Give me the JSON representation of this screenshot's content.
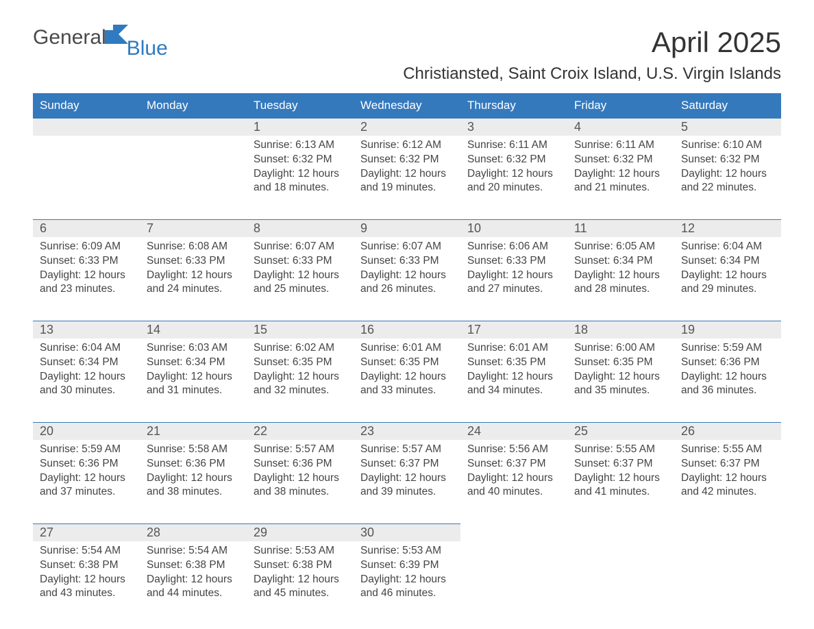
{
  "brand": {
    "word1": "General",
    "word2": "Blue"
  },
  "title": "April 2025",
  "location": "Christiansted, Saint Croix Island, U.S. Virgin Islands",
  "colors": {
    "header_bg": "#3579bd",
    "header_text": "#ffffff",
    "daynum_bg": "#ececec",
    "daynum_border": "#3579bd",
    "body_text": "#444444",
    "brand_gray": "#4a4a4a",
    "brand_blue": "#2f7ac0"
  },
  "weekdays": [
    "Sunday",
    "Monday",
    "Tuesday",
    "Wednesday",
    "Thursday",
    "Friday",
    "Saturday"
  ],
  "grid": {
    "leading_blanks": 2,
    "days": [
      {
        "n": "1",
        "sunrise": "Sunrise: 6:13 AM",
        "sunset": "Sunset: 6:32 PM",
        "dl1": "Daylight: 12 hours",
        "dl2": "and 18 minutes."
      },
      {
        "n": "2",
        "sunrise": "Sunrise: 6:12 AM",
        "sunset": "Sunset: 6:32 PM",
        "dl1": "Daylight: 12 hours",
        "dl2": "and 19 minutes."
      },
      {
        "n": "3",
        "sunrise": "Sunrise: 6:11 AM",
        "sunset": "Sunset: 6:32 PM",
        "dl1": "Daylight: 12 hours",
        "dl2": "and 20 minutes."
      },
      {
        "n": "4",
        "sunrise": "Sunrise: 6:11 AM",
        "sunset": "Sunset: 6:32 PM",
        "dl1": "Daylight: 12 hours",
        "dl2": "and 21 minutes."
      },
      {
        "n": "5",
        "sunrise": "Sunrise: 6:10 AM",
        "sunset": "Sunset: 6:32 PM",
        "dl1": "Daylight: 12 hours",
        "dl2": "and 22 minutes."
      },
      {
        "n": "6",
        "sunrise": "Sunrise: 6:09 AM",
        "sunset": "Sunset: 6:33 PM",
        "dl1": "Daylight: 12 hours",
        "dl2": "and 23 minutes."
      },
      {
        "n": "7",
        "sunrise": "Sunrise: 6:08 AM",
        "sunset": "Sunset: 6:33 PM",
        "dl1": "Daylight: 12 hours",
        "dl2": "and 24 minutes."
      },
      {
        "n": "8",
        "sunrise": "Sunrise: 6:07 AM",
        "sunset": "Sunset: 6:33 PM",
        "dl1": "Daylight: 12 hours",
        "dl2": "and 25 minutes."
      },
      {
        "n": "9",
        "sunrise": "Sunrise: 6:07 AM",
        "sunset": "Sunset: 6:33 PM",
        "dl1": "Daylight: 12 hours",
        "dl2": "and 26 minutes."
      },
      {
        "n": "10",
        "sunrise": "Sunrise: 6:06 AM",
        "sunset": "Sunset: 6:33 PM",
        "dl1": "Daylight: 12 hours",
        "dl2": "and 27 minutes."
      },
      {
        "n": "11",
        "sunrise": "Sunrise: 6:05 AM",
        "sunset": "Sunset: 6:34 PM",
        "dl1": "Daylight: 12 hours",
        "dl2": "and 28 minutes."
      },
      {
        "n": "12",
        "sunrise": "Sunrise: 6:04 AM",
        "sunset": "Sunset: 6:34 PM",
        "dl1": "Daylight: 12 hours",
        "dl2": "and 29 minutes."
      },
      {
        "n": "13",
        "sunrise": "Sunrise: 6:04 AM",
        "sunset": "Sunset: 6:34 PM",
        "dl1": "Daylight: 12 hours",
        "dl2": "and 30 minutes."
      },
      {
        "n": "14",
        "sunrise": "Sunrise: 6:03 AM",
        "sunset": "Sunset: 6:34 PM",
        "dl1": "Daylight: 12 hours",
        "dl2": "and 31 minutes."
      },
      {
        "n": "15",
        "sunrise": "Sunrise: 6:02 AM",
        "sunset": "Sunset: 6:35 PM",
        "dl1": "Daylight: 12 hours",
        "dl2": "and 32 minutes."
      },
      {
        "n": "16",
        "sunrise": "Sunrise: 6:01 AM",
        "sunset": "Sunset: 6:35 PM",
        "dl1": "Daylight: 12 hours",
        "dl2": "and 33 minutes."
      },
      {
        "n": "17",
        "sunrise": "Sunrise: 6:01 AM",
        "sunset": "Sunset: 6:35 PM",
        "dl1": "Daylight: 12 hours",
        "dl2": "and 34 minutes."
      },
      {
        "n": "18",
        "sunrise": "Sunrise: 6:00 AM",
        "sunset": "Sunset: 6:35 PM",
        "dl1": "Daylight: 12 hours",
        "dl2": "and 35 minutes."
      },
      {
        "n": "19",
        "sunrise": "Sunrise: 5:59 AM",
        "sunset": "Sunset: 6:36 PM",
        "dl1": "Daylight: 12 hours",
        "dl2": "and 36 minutes."
      },
      {
        "n": "20",
        "sunrise": "Sunrise: 5:59 AM",
        "sunset": "Sunset: 6:36 PM",
        "dl1": "Daylight: 12 hours",
        "dl2": "and 37 minutes."
      },
      {
        "n": "21",
        "sunrise": "Sunrise: 5:58 AM",
        "sunset": "Sunset: 6:36 PM",
        "dl1": "Daylight: 12 hours",
        "dl2": "and 38 minutes."
      },
      {
        "n": "22",
        "sunrise": "Sunrise: 5:57 AM",
        "sunset": "Sunset: 6:36 PM",
        "dl1": "Daylight: 12 hours",
        "dl2": "and 38 minutes."
      },
      {
        "n": "23",
        "sunrise": "Sunrise: 5:57 AM",
        "sunset": "Sunset: 6:37 PM",
        "dl1": "Daylight: 12 hours",
        "dl2": "and 39 minutes."
      },
      {
        "n": "24",
        "sunrise": "Sunrise: 5:56 AM",
        "sunset": "Sunset: 6:37 PM",
        "dl1": "Daylight: 12 hours",
        "dl2": "and 40 minutes."
      },
      {
        "n": "25",
        "sunrise": "Sunrise: 5:55 AM",
        "sunset": "Sunset: 6:37 PM",
        "dl1": "Daylight: 12 hours",
        "dl2": "and 41 minutes."
      },
      {
        "n": "26",
        "sunrise": "Sunrise: 5:55 AM",
        "sunset": "Sunset: 6:37 PM",
        "dl1": "Daylight: 12 hours",
        "dl2": "and 42 minutes."
      },
      {
        "n": "27",
        "sunrise": "Sunrise: 5:54 AM",
        "sunset": "Sunset: 6:38 PM",
        "dl1": "Daylight: 12 hours",
        "dl2": "and 43 minutes."
      },
      {
        "n": "28",
        "sunrise": "Sunrise: 5:54 AM",
        "sunset": "Sunset: 6:38 PM",
        "dl1": "Daylight: 12 hours",
        "dl2": "and 44 minutes."
      },
      {
        "n": "29",
        "sunrise": "Sunrise: 5:53 AM",
        "sunset": "Sunset: 6:38 PM",
        "dl1": "Daylight: 12 hours",
        "dl2": "and 45 minutes."
      },
      {
        "n": "30",
        "sunrise": "Sunrise: 5:53 AM",
        "sunset": "Sunset: 6:39 PM",
        "dl1": "Daylight: 12 hours",
        "dl2": "and 46 minutes."
      }
    ]
  }
}
